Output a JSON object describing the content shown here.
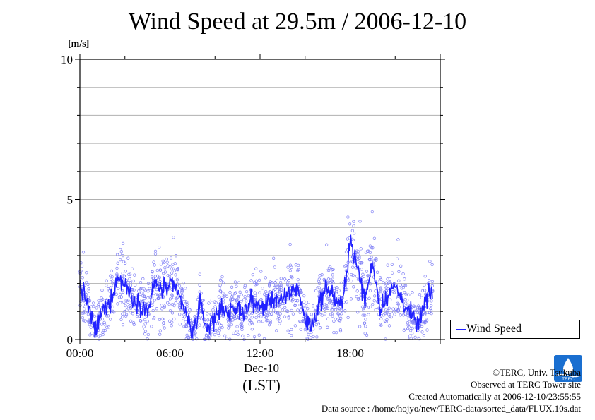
{
  "chart_data": {
    "type": "scatter",
    "title": "Wind Speed at 29.5m / 2006-12-10",
    "ylabel": "[m/s]",
    "xlabel": "(LST)",
    "date_label": "Dec-10",
    "ylim": [
      0,
      10
    ],
    "xlim": [
      0,
      24
    ],
    "y_ticks": [
      0,
      5,
      10
    ],
    "x_ticks": [
      {
        "hour": 0,
        "label": "00:00"
      },
      {
        "hour": 6,
        "label": "06:00"
      },
      {
        "hour": 12,
        "label": "12:00"
      },
      {
        "hour": 18,
        "label": "18:00"
      }
    ],
    "grid": true,
    "legend_position": "right-bottom outside",
    "series": [
      {
        "name": "Wind Speed",
        "color": "#2222ff",
        "x": [
          0.0,
          0.5,
          1.0,
          1.5,
          2.0,
          2.5,
          3.0,
          3.5,
          4.0,
          4.5,
          5.0,
          5.5,
          6.0,
          6.5,
          7.0,
          7.5,
          8.0,
          8.5,
          9.0,
          9.5,
          10.0,
          10.5,
          11.0,
          11.5,
          12.0,
          12.5,
          13.0,
          13.5,
          14.0,
          14.5,
          15.0,
          15.5,
          16.0,
          16.5,
          17.0,
          17.5,
          18.0,
          18.5,
          19.0,
          19.5,
          20.0,
          20.5,
          21.0,
          21.5,
          22.0,
          22.5,
          23.0,
          23.5
        ],
        "y": [
          2.0,
          1.3,
          0.3,
          1.0,
          1.3,
          2.2,
          2.0,
          1.5,
          1.3,
          1.0,
          2.0,
          1.8,
          1.9,
          1.7,
          1.0,
          0.2,
          1.2,
          0.4,
          0.8,
          1.2,
          0.9,
          1.1,
          1.0,
          1.4,
          1.1,
          1.3,
          1.5,
          1.3,
          1.7,
          1.9,
          0.7,
          0.5,
          1.4,
          1.9,
          1.4,
          1.2,
          3.6,
          2.5,
          1.4,
          2.8,
          1.1,
          1.6,
          1.9,
          1.4,
          0.9,
          0.5,
          1.3,
          1.8
        ]
      }
    ]
  },
  "footer": {
    "copyright": "©TERC, Univ. Tsukuba",
    "observed": "Observed at TERC Tower site",
    "created": "Created Automatically at 2006-12-10/23:55:55",
    "source": "Data source : /home/hojyo/new/TERC-data/sorted_data/FLUX.10s.dat"
  },
  "logo": {
    "text": "TERC"
  }
}
